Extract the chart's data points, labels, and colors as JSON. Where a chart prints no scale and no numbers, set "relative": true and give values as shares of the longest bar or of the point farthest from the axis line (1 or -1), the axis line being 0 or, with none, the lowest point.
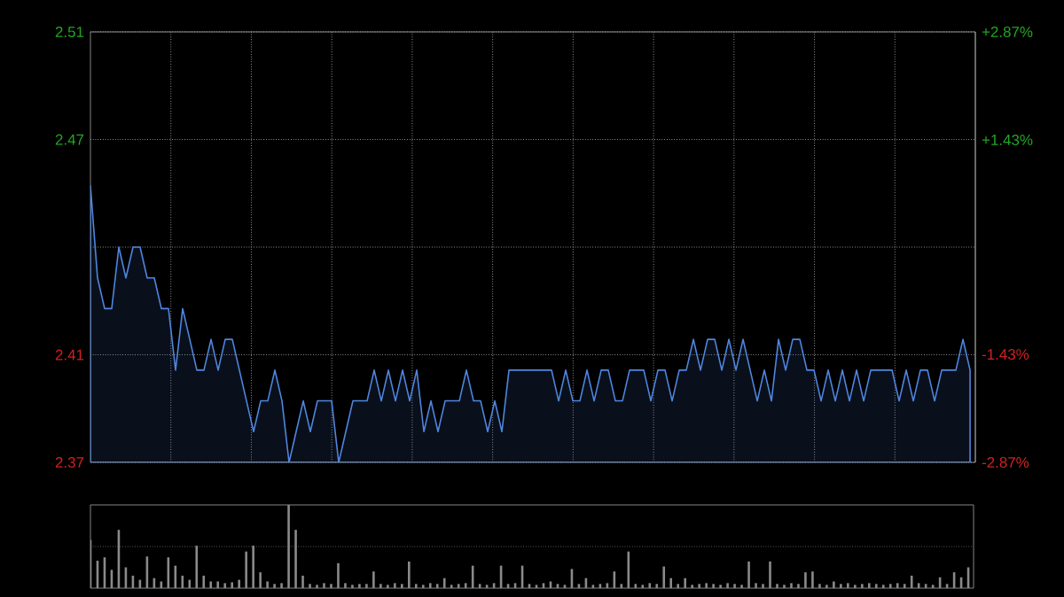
{
  "chart_data": [
    {
      "type": "area",
      "categories": [
        null,
        null,
        null,
        null,
        null,
        null,
        null,
        null,
        null,
        null,
        null,
        null,
        null,
        null,
        null,
        null,
        null,
        null,
        null,
        null,
        null,
        null,
        null,
        null,
        null,
        null,
        null,
        null,
        null,
        null,
        null,
        null,
        null,
        null,
        null,
        null,
        null,
        null,
        null,
        null,
        null,
        null,
        null,
        null,
        null,
        null,
        null,
        null,
        null,
        null,
        null,
        null,
        null,
        null,
        null,
        null,
        null,
        null,
        null,
        null,
        null,
        null,
        null,
        null,
        null,
        null,
        null,
        null,
        null,
        null,
        null,
        null,
        null,
        null,
        null,
        null,
        null,
        null,
        null,
        null,
        null,
        null,
        null,
        null,
        null,
        null,
        null,
        null,
        null,
        null,
        null,
        null,
        null,
        null,
        null,
        null,
        null,
        null,
        null,
        null,
        null,
        null,
        null,
        null,
        null,
        null,
        null,
        null,
        null,
        null,
        null,
        null,
        null,
        null,
        null,
        null,
        null,
        null,
        null,
        null,
        null,
        null,
        null,
        null,
        null
      ],
      "series": [
        {
          "color": "#4f86e0",
          "values": [
            2.46,
            2.43,
            2.42,
            2.42,
            2.44,
            2.43,
            2.44,
            2.44,
            2.43,
            2.43,
            2.42,
            2.42,
            2.4,
            2.42,
            2.41,
            2.4,
            2.4,
            2.41,
            2.4,
            2.41,
            2.41,
            2.4,
            2.39,
            2.38,
            2.39,
            2.39,
            2.4,
            2.39,
            2.37,
            2.38,
            2.39,
            2.38,
            2.39,
            2.39,
            2.39,
            2.37,
            2.38,
            2.39,
            2.39,
            2.39,
            2.4,
            2.39,
            2.4,
            2.39,
            2.4,
            2.39,
            2.4,
            2.38,
            2.39,
            2.38,
            2.39,
            2.39,
            2.39,
            2.4,
            2.39,
            2.39,
            2.38,
            2.39,
            2.38,
            2.4,
            2.4,
            2.4,
            2.4,
            2.4,
            2.4,
            2.4,
            2.39,
            2.4,
            2.39,
            2.39,
            2.4,
            2.39,
            2.4,
            2.4,
            2.39,
            2.39,
            2.4,
            2.4,
            2.4,
            2.39,
            2.4,
            2.4,
            2.39,
            2.4,
            2.4,
            2.41,
            2.4,
            2.41,
            2.41,
            2.4,
            2.41,
            2.4,
            2.41,
            2.4,
            2.39,
            2.4,
            2.39,
            2.41,
            2.4,
            2.41,
            2.41,
            2.4,
            2.4,
            2.39,
            2.4,
            2.39,
            2.4,
            2.39,
            2.4,
            2.39,
            2.4,
            2.4,
            2.4,
            2.4,
            2.39,
            2.4,
            2.39,
            2.4,
            2.4,
            2.39,
            2.4,
            2.4,
            2.4,
            2.41,
            2.4
          ]
        }
      ],
      "ylim": [
        2.37,
        2.51
      ],
      "yticks": [
        2.37,
        {
          "value": 2.405,
          "label": "2.41"
        },
        {
          "value": 2.44,
          "label": null
        },
        {
          "value": 2.475,
          "label": "2.47"
        },
        2.51
      ],
      "y2lim": [
        -2.87,
        2.87
      ],
      "y2ticks": [
        {
          "value": -2.87,
          "label": "-2.87%"
        },
        {
          "value": -1.43,
          "label": "-1.43%"
        },
        {
          "value": 0,
          "label": null
        },
        {
          "value": 1.43,
          "label": "+1.43%"
        },
        {
          "value": 2.87,
          "label": "+2.87%"
        }
      ],
      "grid": true,
      "tick_labels": "y"
    },
    {
      "type": "bar",
      "relative": true,
      "categories": [
        null,
        null,
        null,
        null,
        null,
        null,
        null,
        null,
        null,
        null,
        null,
        null,
        null,
        null,
        null,
        null,
        null,
        null,
        null,
        null,
        null,
        null,
        null,
        null,
        null,
        null,
        null,
        null,
        null,
        null,
        null,
        null,
        null,
        null,
        null,
        null,
        null,
        null,
        null,
        null,
        null,
        null,
        null,
        null,
        null,
        null,
        null,
        null,
        null,
        null,
        null,
        null,
        null,
        null,
        null,
        null,
        null,
        null,
        null,
        null,
        null,
        null,
        null,
        null,
        null,
        null,
        null,
        null,
        null,
        null,
        null,
        null,
        null,
        null,
        null,
        null,
        null,
        null,
        null,
        null,
        null,
        null,
        null,
        null,
        null,
        null,
        null,
        null,
        null,
        null,
        null,
        null,
        null,
        null,
        null,
        null,
        null,
        null,
        null,
        null,
        null,
        null,
        null,
        null,
        null,
        null,
        null,
        null,
        null,
        null,
        null,
        null,
        null,
        null,
        null,
        null,
        null,
        null,
        null,
        null,
        null,
        null,
        null,
        null,
        null
      ],
      "series": [
        {
          "color": "#8a8a8a",
          "values": [
            0.58,
            0.33,
            0.37,
            0.22,
            0.7,
            0.25,
            0.15,
            0.1,
            0.38,
            0.12,
            0.08,
            0.37,
            0.27,
            0.15,
            0.1,
            0.51,
            0.15,
            0.08,
            0.08,
            0.06,
            0.07,
            0.1,
            0.44,
            0.51,
            0.19,
            0.08,
            0.05,
            0.06,
            1.0,
            0.7,
            0.15,
            0.05,
            0.04,
            0.06,
            0.05,
            0.3,
            0.06,
            0.04,
            0.05,
            0.05,
            0.2,
            0.05,
            0.04,
            0.06,
            0.05,
            0.32,
            0.05,
            0.04,
            0.06,
            0.05,
            0.12,
            0.04,
            0.05,
            0.06,
            0.27,
            0.05,
            0.04,
            0.06,
            0.27,
            0.05,
            0.06,
            0.27,
            0.05,
            0.04,
            0.06,
            0.08,
            0.05,
            0.04,
            0.23,
            0.05,
            0.12,
            0.04,
            0.05,
            0.06,
            0.2,
            0.05,
            0.44,
            0.05,
            0.04,
            0.06,
            0.05,
            0.26,
            0.12,
            0.05,
            0.12,
            0.04,
            0.05,
            0.06,
            0.05,
            0.04,
            0.06,
            0.05,
            0.04,
            0.32,
            0.06,
            0.05,
            0.32,
            0.05,
            0.04,
            0.06,
            0.05,
            0.19,
            0.2,
            0.05,
            0.04,
            0.08,
            0.05,
            0.06,
            0.04,
            0.05,
            0.06,
            0.05,
            0.04,
            0.05,
            0.06,
            0.05,
            0.15,
            0.06,
            0.05,
            0.04,
            0.13,
            0.05,
            0.19,
            0.13,
            0.25
          ]
        }
      ],
      "ref_lines": [
        {
          "axis": "y",
          "value": 0.5,
          "color": "#8c8c8c",
          "line_style": "dotted"
        }
      ],
      "tick_labels": false
    }
  ]
}
